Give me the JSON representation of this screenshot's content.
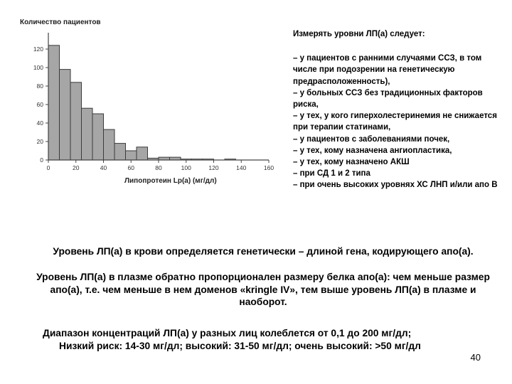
{
  "chart_data": {
    "type": "bar",
    "title": "",
    "ylabel": "Количество пациентов",
    "xlabel": "Липопротеин Lp(a) (мг/дл)",
    "bin_width": 8,
    "bin_starts": [
      0,
      8,
      16,
      24,
      32,
      40,
      48,
      56,
      64,
      72,
      80,
      88,
      96,
      104,
      112,
      120,
      128,
      136,
      144,
      152
    ],
    "values": [
      124,
      98,
      84,
      56,
      50,
      33,
      18,
      10,
      14,
      2,
      3,
      3,
      1,
      1,
      1,
      0,
      1,
      0,
      0,
      0
    ],
    "xlim": [
      0,
      160
    ],
    "ylim": [
      0,
      130
    ],
    "x_ticks": [
      "0",
      "20",
      "40",
      "60",
      "80",
      "100",
      "120",
      "140",
      "160"
    ],
    "y_ticks": [
      "0",
      "20",
      "40",
      "60",
      "80",
      "100",
      "120"
    ],
    "bar_color": "#a6a6a6",
    "grid": false
  },
  "side_text": {
    "heading": "Измерять уровни ЛП(а) следует:",
    "items": [
      "– у пациентов с ранними случаями ССЗ, в том числе при подозрении на генетическую предрасположенность),",
      "– у больных ССЗ без традиционных факторов риска,",
      "– у тех, у кого гиперхолестеринемия не снижается при терапии статинами,",
      "– у пациентов с заболеваниями почек,",
      "– у тех, кому назначена ангиопластика,",
      "– у тех, кому назначено АКШ",
      "– при СД 1 и 2 типа",
      "– при очень высоких уровнях ХС ЛНП и/или апо В"
    ]
  },
  "paragraphs": {
    "p1": "Уровень ЛП(а) в крови определяется генетически – длиной гена, кодирующего апо(а).",
    "p2": "Уровень ЛП(а) в плазме обратно пропорционален размеру белка апо(а): чем меньше размер апо(а), т.е. чем меньше в нем доменов «kringle IV», тем выше уровень ЛП(а) в плазме и наоборот."
  },
  "range": {
    "line1": "Диапазон концентраций ЛП(а) у разных лиц колеблется от 0,1 до 200 мг/дл;",
    "line2": "Низкий риск: 14-30 мг/дл; высокий: 31-50 мг/дл; очень высокий: >50 мг/дл"
  },
  "page_number": "40"
}
